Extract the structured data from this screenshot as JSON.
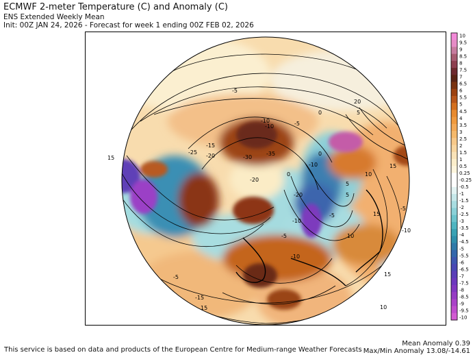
{
  "header": {
    "title": "ECMWF 2-meter Temperature (C) and Anomaly (C)",
    "subtitle": "ENS Extended Weekly Mean",
    "init_line": "Init: 00Z JAN 24, 2026 - Forecast for week 1 ending 00Z FEB 02, 2026"
  },
  "map": {
    "contour_labels": [
      "-5",
      "-10",
      "-15",
      "-20",
      "-25",
      "-30",
      "-35",
      "-10",
      "-5",
      "15",
      "-20",
      "-10",
      "0",
      "5",
      "-5",
      "10",
      "-10",
      "-20",
      "0",
      "5",
      "15",
      "-5",
      "-10",
      "20",
      "15",
      "0",
      "5",
      "10",
      "15",
      "10",
      "-5",
      "15",
      "-15",
      "-10",
      "-5"
    ]
  },
  "colorbar": {
    "ticks": [
      "10",
      "9.5",
      "9",
      "8.5",
      "8",
      "7.5",
      "7",
      "6.5",
      "6",
      "5.5",
      "5",
      "4.5",
      "4",
      "3.5",
      "3",
      "2.5",
      "2",
      "1.5",
      "1",
      "0.5",
      "0.25",
      "-0.25",
      "-0.5",
      "-1",
      "-1.5",
      "-2",
      "-2.5",
      "-3",
      "-3.5",
      "-4",
      "-4.5",
      "-5",
      "-5.5",
      "-6",
      "-6.5",
      "-7",
      "-7.5",
      "-8",
      "-8.5",
      "-9",
      "-9.5",
      "-10"
    ],
    "colors": [
      "#f28ad8",
      "#e68cc6",
      "#c77c9f",
      "#a85c72",
      "#8e4050",
      "#6e2a2e",
      "#5a2414",
      "#7a3310",
      "#9c4210",
      "#b8561a",
      "#d4701f",
      "#e88a2e",
      "#f09a3e",
      "#f3a956",
      "#f5b96c",
      "#f7c98a",
      "#f8d6a0",
      "#f9e3b8",
      "#fbeecb",
      "#fdf5dd",
      "#ffffff",
      "#ffffff",
      "#e3f3f3",
      "#c6e8ea",
      "#a8dde1",
      "#8ad1d8",
      "#6cc4cd",
      "#4fb5c1",
      "#3aa2b4",
      "#2f8fab",
      "#2f7aa8",
      "#3367ac",
      "#3d56b0",
      "#4948b4",
      "#5a3eb8",
      "#6d38bd",
      "#8137c0",
      "#963bc4",
      "#aa42c8",
      "#bf4dcd",
      "#d25bd2"
    ]
  },
  "footer": {
    "service_note": "This service is based on data and products of the European Centre for Medium-range Weather Forecasts",
    "mean_anomaly": "Mean Anomaly 0.39",
    "maxmin_anomaly": "Max/Min Anomaly 13.08/-14.61"
  }
}
